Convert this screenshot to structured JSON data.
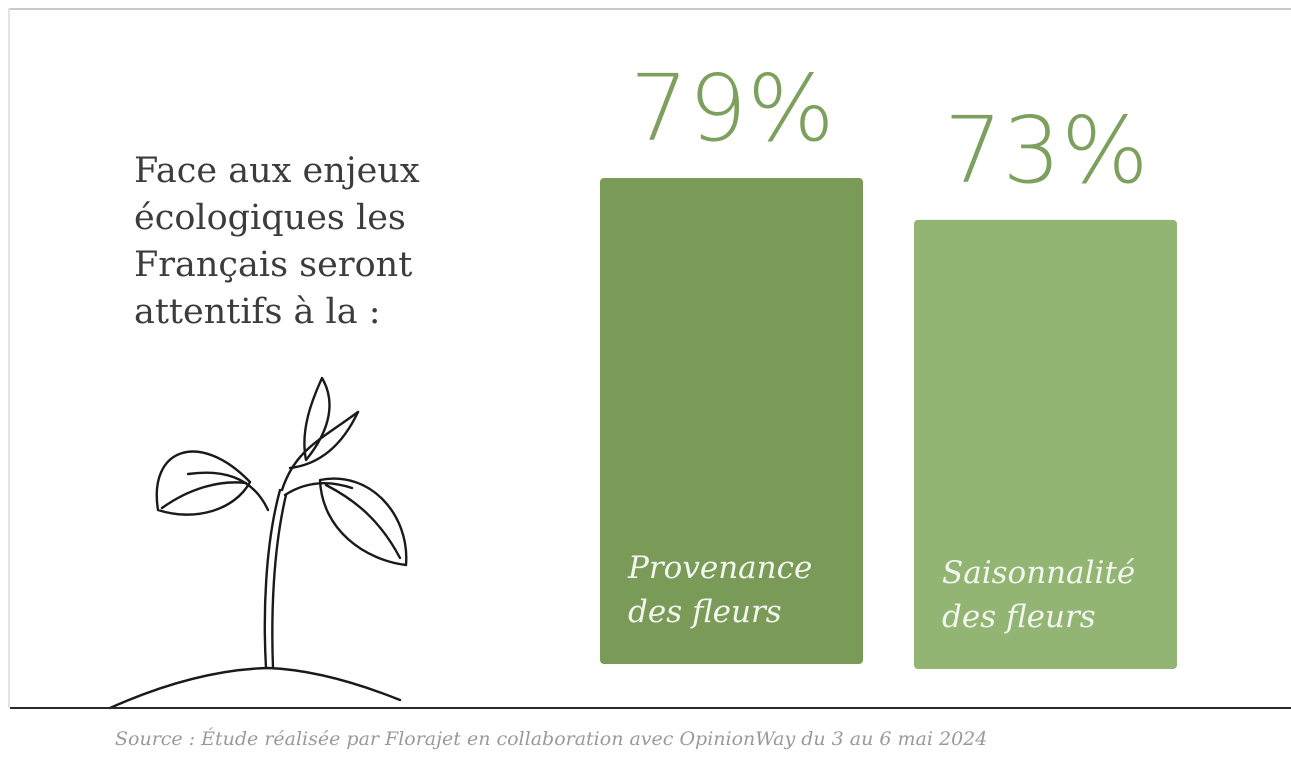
{
  "headline_lines": [
    "Face aux enjeux",
    "écologiques les",
    "Français seront",
    "attentifs à la :"
  ],
  "illustration": "sprout-line-drawing",
  "source_note": "Source : Étude réalisée par Florajet en collaboration avec OpinionWay du 3 au 6 mai 2024",
  "colors": {
    "bar_dark": "#7a9b58",
    "bar_light": "#93b573",
    "value_text": "#7da05f",
    "headline_text": "#3c3c3c"
  },
  "chart_data": {
    "type": "bar",
    "categories": [
      "Provenance des fleurs",
      "Saisonnalité des fleurs"
    ],
    "category_lines": [
      [
        "Provenance",
        "des fleurs"
      ],
      [
        "Saisonnalité",
        "des fleurs"
      ]
    ],
    "values": [
      79,
      73
    ],
    "value_labels": [
      "79%",
      "73%"
    ],
    "bar_colors": [
      "#7a9b58",
      "#93b573"
    ],
    "ylim": [
      0,
      100
    ],
    "grid": false,
    "legend": "none"
  }
}
